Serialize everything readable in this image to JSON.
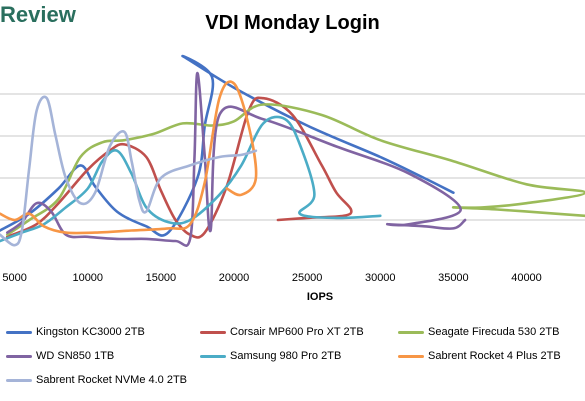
{
  "header": {
    "brand": "Review"
  },
  "chart_data": {
    "type": "scatter",
    "title": "VDI Monday Login",
    "xlabel": "IOPS",
    "ylabel": "",
    "xlim": [
      4000,
      44000
    ],
    "ylim": [
      0,
      10
    ],
    "xticks": [
      5000,
      10000,
      15000,
      20000,
      25000,
      30000,
      35000,
      40000
    ],
    "grid": true,
    "legend_position": "bottom",
    "series": [
      {
        "name": "Kingston KC3000 2TB",
        "color": "#4472c4",
        "points": [
          [
            4000,
            1.5
          ],
          [
            6000,
            2.3
          ],
          [
            8000,
            3.5
          ],
          [
            9500,
            4.6
          ],
          [
            10500,
            3.6
          ],
          [
            12000,
            2.4
          ],
          [
            14000,
            1.7
          ],
          [
            15500,
            1.4
          ],
          [
            17500,
            4.0
          ],
          [
            18000,
            6.5
          ],
          [
            18500,
            8.8
          ],
          [
            16500,
            9.8
          ],
          [
            20000,
            8.3
          ],
          [
            25000,
            6.5
          ],
          [
            30000,
            5.0
          ],
          [
            33000,
            4.0
          ],
          [
            35000,
            3.3
          ]
        ]
      },
      {
        "name": "Corsair MP600 Pro XT 2TB",
        "color": "#c0504d",
        "points": [
          [
            4500,
            1.2
          ],
          [
            6500,
            1.8
          ],
          [
            8000,
            2.8
          ],
          [
            10000,
            4.4
          ],
          [
            11500,
            5.3
          ],
          [
            12500,
            5.6
          ],
          [
            14000,
            5.0
          ],
          [
            15000,
            3.4
          ],
          [
            16000,
            2.0
          ],
          [
            17000,
            1.3
          ],
          [
            18000,
            1.4
          ],
          [
            19500,
            3.6
          ],
          [
            21000,
            7.2
          ],
          [
            22000,
            7.8
          ],
          [
            24000,
            7.0
          ],
          [
            26000,
            4.6
          ],
          [
            27000,
            3.3
          ],
          [
            28000,
            2.5
          ],
          [
            27500,
            2.2
          ],
          [
            25000,
            2.1
          ],
          [
            23000,
            2.0
          ]
        ]
      },
      {
        "name": "Seagate Firecuda 530 2TB",
        "color": "#9bbb59",
        "points": [
          [
            4500,
            1.3
          ],
          [
            6000,
            2.0
          ],
          [
            8000,
            3.0
          ],
          [
            9500,
            5.0
          ],
          [
            11000,
            5.7
          ],
          [
            12500,
            5.8
          ],
          [
            14500,
            6.1
          ],
          [
            16500,
            6.6
          ],
          [
            18500,
            6.5
          ],
          [
            20000,
            6.7
          ],
          [
            22000,
            7.5
          ],
          [
            26000,
            7.0
          ],
          [
            30000,
            5.8
          ],
          [
            35000,
            4.8
          ],
          [
            40000,
            3.7
          ],
          [
            44000,
            3.3
          ],
          [
            40000,
            2.8
          ],
          [
            37000,
            2.6
          ],
          [
            35000,
            2.6
          ],
          [
            38000,
            2.5
          ],
          [
            42000,
            2.3
          ],
          [
            44000,
            2.2
          ]
        ]
      },
      {
        "name": "WD SN850 1TB",
        "color": "#8064a2",
        "points": [
          [
            4500,
            1.4
          ],
          [
            5500,
            1.9
          ],
          [
            6500,
            2.8
          ],
          [
            7500,
            2.4
          ],
          [
            8500,
            1.3
          ],
          [
            10000,
            1.2
          ],
          [
            12000,
            1.1
          ],
          [
            14000,
            1.1
          ],
          [
            16000,
            1.0
          ],
          [
            17000,
            1.1
          ],
          [
            17300,
            5.0
          ],
          [
            17500,
            9.0
          ],
          [
            18000,
            5.0
          ],
          [
            18400,
            1.5
          ],
          [
            19000,
            7.0
          ],
          [
            22000,
            6.8
          ],
          [
            27000,
            5.5
          ],
          [
            32000,
            4.2
          ],
          [
            35500,
            2.5
          ],
          [
            32000,
            1.8
          ],
          [
            30500,
            1.8
          ],
          [
            33000,
            1.7
          ],
          [
            35000,
            1.6
          ],
          [
            35800,
            2.0
          ]
        ]
      },
      {
        "name": "Samsung 980 Pro 2TB",
        "color": "#4bacc6",
        "points": [
          [
            4000,
            1.0
          ],
          [
            5500,
            1.4
          ],
          [
            7000,
            1.8
          ],
          [
            8500,
            2.6
          ],
          [
            10000,
            3.5
          ],
          [
            11000,
            4.8
          ],
          [
            12000,
            5.3
          ],
          [
            13000,
            4.2
          ],
          [
            14000,
            2.6
          ],
          [
            15500,
            1.9
          ],
          [
            17000,
            2.0
          ],
          [
            19000,
            3.2
          ],
          [
            20500,
            4.6
          ],
          [
            22000,
            6.6
          ],
          [
            23500,
            6.8
          ],
          [
            24500,
            5.6
          ],
          [
            25500,
            3.2
          ],
          [
            24500,
            2.3
          ],
          [
            27000,
            2.1
          ],
          [
            30000,
            2.2
          ]
        ]
      },
      {
        "name": "Sabrent Rocket 4 Plus 2TB",
        "color": "#f79646",
        "points": [
          [
            4000,
            2.3
          ],
          [
            5000,
            2.0
          ],
          [
            6000,
            2.3
          ],
          [
            7000,
            1.7
          ],
          [
            8500,
            1.4
          ],
          [
            10500,
            1.4
          ],
          [
            13000,
            1.5
          ],
          [
            15500,
            1.6
          ],
          [
            17000,
            1.8
          ],
          [
            18000,
            3.8
          ],
          [
            19000,
            7.8
          ],
          [
            20000,
            8.5
          ],
          [
            21000,
            6.5
          ],
          [
            21500,
            4.0
          ],
          [
            20500,
            3.2
          ],
          [
            19500,
            3.5
          ]
        ]
      },
      {
        "name": "Sabrent Rocket NVMe 4.0 2TB",
        "color": "#a5b4d8",
        "points": [
          [
            4000,
            1.3
          ],
          [
            5000,
            0.8
          ],
          [
            5500,
            1.5
          ],
          [
            6000,
            4.5
          ],
          [
            6500,
            7.2
          ],
          [
            7200,
            7.8
          ],
          [
            7800,
            6.0
          ],
          [
            8500,
            4.0
          ],
          [
            9500,
            2.8
          ],
          [
            10500,
            3.3
          ],
          [
            11500,
            5.5
          ],
          [
            12500,
            6.2
          ],
          [
            13000,
            4.8
          ],
          [
            13500,
            3.0
          ],
          [
            14000,
            2.4
          ],
          [
            15000,
            4.0
          ],
          [
            17000,
            4.6
          ],
          [
            19000,
            5.0
          ],
          [
            20500,
            5.1
          ],
          [
            21500,
            5.3
          ]
        ]
      }
    ]
  }
}
